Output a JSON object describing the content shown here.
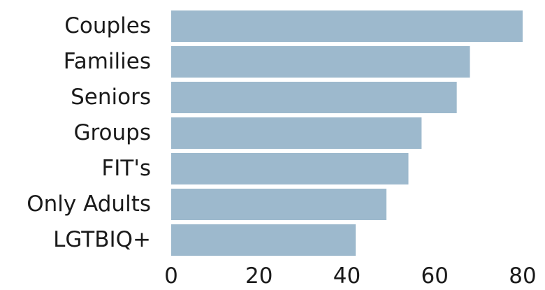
{
  "chart_data": {
    "type": "bar",
    "orientation": "horizontal",
    "categories": [
      "Couples",
      "Families",
      "Seniors",
      "Groups",
      "FIT's",
      "Only Adults",
      "LGTBIQ+"
    ],
    "values": [
      80,
      68,
      65,
      57,
      54,
      49,
      42
    ],
    "title": "",
    "xlabel": "",
    "ylabel": "",
    "xlim": [
      0,
      80
    ],
    "xticks": [
      "0",
      "20",
      "40",
      "60",
      "80"
    ],
    "grid": false,
    "legend": "none",
    "bar_color": "#9db9cd"
  }
}
